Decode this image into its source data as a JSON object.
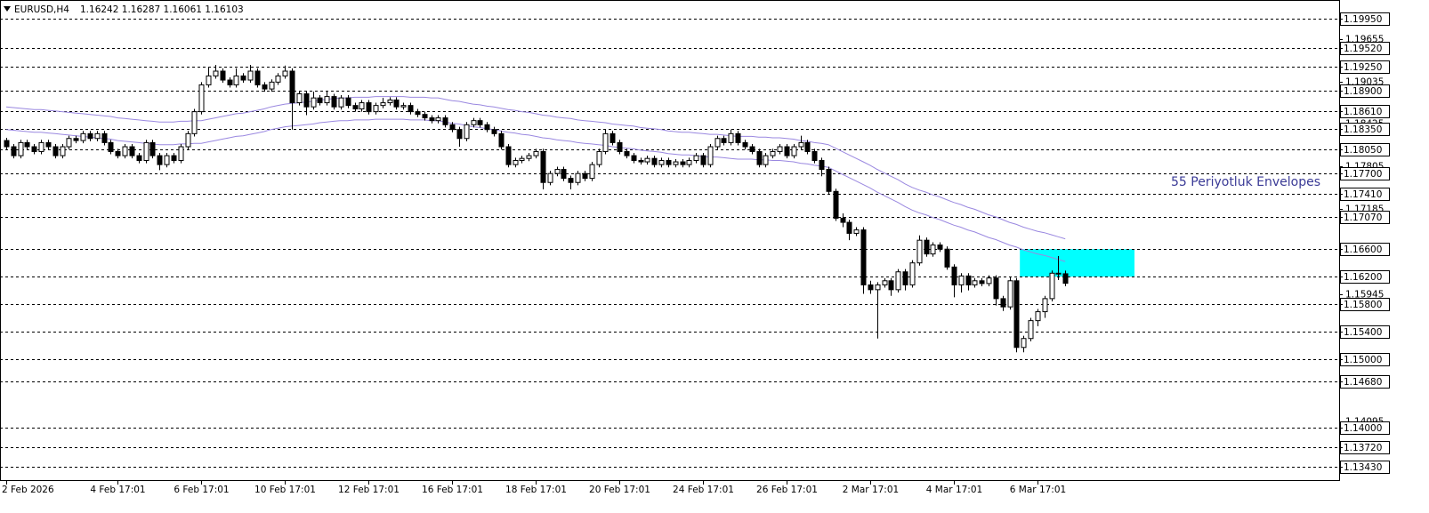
{
  "chart_data": {
    "type": "candlestick",
    "title": "EURUSD,H4",
    "subtitle": "1.16242 1.16287 1.16061 1.16103",
    "annotation": "55 Periyotluk Envelopes",
    "bull_color": "#ffffff",
    "bear_color": "#000000",
    "ylim": [
      1.1324,
      1.2016
    ],
    "yticks": [
      1.19655,
      1.19035,
      1.18425,
      1.17805,
      1.17185,
      1.15945,
      1.14095
    ],
    "levels": [
      {
        "value": 1.1995,
        "label": "1.19950"
      },
      {
        "value": 1.1952,
        "label": "1.19520"
      },
      {
        "value": 1.1925,
        "label": "1.19250"
      },
      {
        "value": 1.189,
        "label": "1.18900"
      },
      {
        "value": 1.1861,
        "label": "1.18610"
      },
      {
        "value": 1.1835,
        "label": "1.18350"
      },
      {
        "value": 1.1805,
        "label": "1.18050"
      },
      {
        "value": 1.177,
        "label": "1.17700"
      },
      {
        "value": 1.1741,
        "label": "1.17410"
      },
      {
        "value": 1.1707,
        "label": "1.17070"
      },
      {
        "value": 1.166,
        "label": "1.16600"
      },
      {
        "value": 1.162,
        "label": "1.16200"
      },
      {
        "value": 1.158,
        "label": "1.15800"
      },
      {
        "value": 1.154,
        "label": "1.15400"
      },
      {
        "value": 1.15,
        "label": "1.15000"
      },
      {
        "value": 1.1468,
        "label": "1.14680"
      },
      {
        "value": 1.14,
        "label": "1.14000"
      },
      {
        "value": 1.1372,
        "label": "1.13720"
      },
      {
        "value": 1.1343,
        "label": "1.13430"
      }
    ],
    "zone": {
      "from": 1.162,
      "to": 1.166,
      "color": "#00ffff"
    },
    "categories": [
      "2 Feb 2026",
      null,
      null,
      null,
      null,
      null,
      null,
      null,
      null,
      null,
      null,
      null,
      null,
      null,
      null,
      null,
      "4 Feb 17:01",
      null,
      null,
      null,
      null,
      null,
      null,
      null,
      null,
      null,
      null,
      null,
      "6 Feb 17:01",
      null,
      null,
      null,
      null,
      null,
      null,
      null,
      null,
      null,
      null,
      null,
      "10 Feb 17:01",
      null,
      null,
      null,
      null,
      null,
      null,
      null,
      null,
      null,
      null,
      null,
      "12 Feb 17:01",
      null,
      null,
      null,
      null,
      null,
      null,
      null,
      null,
      null,
      null,
      null,
      "16 Feb 17:01",
      null,
      null,
      null,
      null,
      null,
      null,
      null,
      null,
      null,
      null,
      null,
      "18 Feb 17:01",
      null,
      null,
      null,
      null,
      null,
      null,
      null,
      null,
      null,
      null,
      null,
      "20 Feb 17:01",
      null,
      null,
      null,
      null,
      null,
      null,
      null,
      null,
      null,
      null,
      null,
      "24 Feb 17:01",
      null,
      null,
      null,
      null,
      null,
      null,
      null,
      null,
      null,
      null,
      null,
      "26 Feb 17:01",
      null,
      null,
      null,
      null,
      null,
      null,
      null,
      null,
      null,
      null,
      null,
      "2 Mar 17:01",
      null,
      null,
      null,
      null,
      null,
      null,
      null,
      null,
      null,
      null,
      null,
      "4 Mar 17:01",
      null,
      null,
      null,
      null,
      null,
      null,
      null,
      null,
      null,
      null,
      null,
      "6 Mar 17:01",
      null,
      null,
      null,
      null
    ],
    "open": [
      1.1818,
      1.1809,
      1.1796,
      1.1815,
      1.1809,
      1.1802,
      1.1815,
      1.1809,
      1.1796,
      1.1809,
      1.1821,
      1.1818,
      1.1828,
      1.1821,
      1.1828,
      1.1815,
      1.1802,
      1.1796,
      1.1809,
      1.1796,
      1.1789,
      1.1815,
      1.1796,
      1.1783,
      1.1796,
      1.1789,
      1.1809,
      1.1828,
      1.186,
      1.1899,
      1.1912,
      1.1919,
      1.1906,
      1.1899,
      1.1912,
      1.1906,
      1.1919,
      1.1899,
      1.1893,
      1.1903,
      1.1912,
      1.1919,
      1.1873,
      1.1886,
      1.1867,
      1.188,
      1.1873,
      1.1882,
      1.1867,
      1.188,
      1.1869,
      1.1864,
      1.1873,
      1.186,
      1.1869,
      1.1873,
      1.1877,
      1.1867,
      1.1869,
      1.186,
      1.1856,
      1.1851,
      1.1847,
      1.1851,
      1.1841,
      1.1834,
      1.1821,
      1.1841,
      1.1847,
      1.1841,
      1.1834,
      1.1828,
      1.1809,
      1.1783,
      1.1789,
      1.1792,
      1.1796,
      1.1802,
      1.1757,
      1.177,
      1.1776,
      1.1763,
      1.1757,
      1.177,
      1.1763,
      1.1783,
      1.1802,
      1.1828,
      1.1815,
      1.1802,
      1.1796,
      1.1789,
      1.1787,
      1.1792,
      1.1783,
      1.1789,
      1.1783,
      1.1787,
      1.1783,
      1.1789,
      1.1796,
      1.1783,
      1.1809,
      1.1821,
      1.1815,
      1.1828,
      1.1815,
      1.1809,
      1.1802,
      1.1783,
      1.1796,
      1.1802,
      1.1809,
      1.1796,
      1.1809,
      1.1815,
      1.1802,
      1.1789,
      1.1776,
      1.1744,
      1.1705,
      1.1699,
      1.1683,
      1.1688,
      1.1608,
      1.1601,
      1.1608,
      1.1614,
      1.1601,
      1.1627,
      1.1608,
      1.164,
      1.1673,
      1.1653,
      1.1666,
      1.166,
      1.1634,
      1.1608,
      1.1621,
      1.1608,
      1.1614,
      1.161,
      1.1618,
      1.1588,
      1.1576,
      1.1614,
      1.1517,
      1.153,
      1.1556,
      1.1569,
      1.1588,
      1.1625,
      1.16242
    ],
    "high": [
      1.1822,
      1.1813,
      1.1819,
      1.1819,
      1.1813,
      1.1819,
      1.1819,
      1.1813,
      1.1813,
      1.1825,
      1.1825,
      1.1832,
      1.1832,
      1.1832,
      1.1832,
      1.1819,
      1.1806,
      1.1813,
      1.1813,
      1.18,
      1.1819,
      1.1819,
      1.18,
      1.18,
      1.18,
      1.1813,
      1.1832,
      1.1864,
      1.1903,
      1.1925,
      1.1928,
      1.1923,
      1.191,
      1.1923,
      1.1916,
      1.1928,
      1.1923,
      1.1903,
      1.1907,
      1.1916,
      1.1927,
      1.1923,
      1.189,
      1.189,
      1.1889,
      1.1884,
      1.189,
      1.1886,
      1.1884,
      1.1884,
      1.1873,
      1.1877,
      1.1877,
      1.1873,
      1.188,
      1.1881,
      1.1881,
      1.1873,
      1.1873,
      1.1864,
      1.186,
      1.1855,
      1.1855,
      1.1855,
      1.1845,
      1.1838,
      1.1845,
      1.1851,
      1.1851,
      1.1845,
      1.1838,
      1.1832,
      1.1813,
      1.1793,
      1.1796,
      1.18,
      1.1806,
      1.1806,
      1.1774,
      1.178,
      1.178,
      1.1767,
      1.1774,
      1.1774,
      1.1787,
      1.1806,
      1.1834,
      1.1832,
      1.1819,
      1.1806,
      1.18,
      1.1793,
      1.1796,
      1.1796,
      1.1793,
      1.1793,
      1.1791,
      1.1791,
      1.1793,
      1.18,
      1.18,
      1.1813,
      1.1825,
      1.1825,
      1.1834,
      1.1832,
      1.1819,
      1.1813,
      1.1806,
      1.18,
      1.1806,
      1.1813,
      1.1813,
      1.1813,
      1.1825,
      1.1819,
      1.1806,
      1.1793,
      1.178,
      1.1748,
      1.1712,
      1.1703,
      1.1692,
      1.1692,
      1.1614,
      1.1612,
      1.1618,
      1.1618,
      1.1631,
      1.1631,
      1.1644,
      1.168,
      1.1677,
      1.167,
      1.167,
      1.1664,
      1.1638,
      1.1625,
      1.1625,
      1.1618,
      1.1618,
      1.1622,
      1.1622,
      1.1592,
      1.162,
      1.1618,
      1.1534,
      1.156,
      1.1573,
      1.1592,
      1.1629,
      1.165,
      1.16287
    ],
    "low": [
      1.1805,
      1.1792,
      1.1792,
      1.1805,
      1.1798,
      1.1798,
      1.1805,
      1.1792,
      1.1792,
      1.1805,
      1.1814,
      1.1814,
      1.1817,
      1.1817,
      1.1811,
      1.1798,
      1.1792,
      1.1792,
      1.1792,
      1.1785,
      1.1785,
      1.1792,
      1.1775,
      1.1779,
      1.1785,
      1.1785,
      1.1805,
      1.1824,
      1.1856,
      1.1895,
      1.1908,
      1.1902,
      1.1895,
      1.1895,
      1.1902,
      1.1902,
      1.1895,
      1.1889,
      1.1889,
      1.1899,
      1.1908,
      1.1834,
      1.1869,
      1.1855,
      1.1863,
      1.1869,
      1.1869,
      1.1863,
      1.1863,
      1.1865,
      1.186,
      1.186,
      1.1856,
      1.1856,
      1.1865,
      1.1869,
      1.1863,
      1.1863,
      1.1856,
      1.1852,
      1.1847,
      1.1843,
      1.1843,
      1.1837,
      1.183,
      1.1809,
      1.1817,
      1.1837,
      1.1837,
      1.183,
      1.1824,
      1.1805,
      1.1779,
      1.1779,
      1.1785,
      1.1788,
      1.1792,
      1.1747,
      1.1753,
      1.1766,
      1.1759,
      1.1747,
      1.1753,
      1.1759,
      1.1759,
      1.1779,
      1.1798,
      1.1811,
      1.1798,
      1.1792,
      1.1785,
      1.1783,
      1.1783,
      1.1779,
      1.1779,
      1.1779,
      1.1779,
      1.1779,
      1.1779,
      1.1785,
      1.1779,
      1.1779,
      1.1805,
      1.1811,
      1.1811,
      1.1811,
      1.1805,
      1.1798,
      1.1779,
      1.1779,
      1.1792,
      1.1798,
      1.1792,
      1.1792,
      1.1805,
      1.1798,
      1.1785,
      1.1766,
      1.174,
      1.1701,
      1.1692,
      1.1673,
      1.1679,
      1.1595,
      1.1595,
      1.153,
      1.1604,
      1.1592,
      1.1597,
      1.16,
      1.1604,
      1.1636,
      1.1649,
      1.1649,
      1.1656,
      1.163,
      1.159,
      1.1597,
      1.16,
      1.1604,
      1.1606,
      1.1606,
      1.1578,
      1.157,
      1.1572,
      1.151,
      1.151,
      1.1526,
      1.1548,
      1.156,
      1.1584,
      1.1615,
      1.16061
    ],
    "close": [
      1.1809,
      1.1796,
      1.1815,
      1.1809,
      1.1802,
      1.1815,
      1.1809,
      1.1796,
      1.1809,
      1.1821,
      1.1818,
      1.1828,
      1.1821,
      1.1828,
      1.1815,
      1.1802,
      1.1796,
      1.1809,
      1.1796,
      1.1789,
      1.1815,
      1.1796,
      1.1783,
      1.1796,
      1.1789,
      1.1809,
      1.1828,
      1.186,
      1.1899,
      1.1912,
      1.1919,
      1.1906,
      1.1899,
      1.1912,
      1.1906,
      1.1919,
      1.1899,
      1.1893,
      1.1903,
      1.1912,
      1.1919,
      1.1873,
      1.1886,
      1.1867,
      1.188,
      1.1873,
      1.1882,
      1.1867,
      1.188,
      1.1869,
      1.1864,
      1.1873,
      1.186,
      1.1869,
      1.1873,
      1.1877,
      1.1867,
      1.1869,
      1.186,
      1.1856,
      1.1851,
      1.1847,
      1.1851,
      1.1841,
      1.1834,
      1.1821,
      1.1841,
      1.1847,
      1.1841,
      1.1834,
      1.1828,
      1.1809,
      1.1783,
      1.1789,
      1.1792,
      1.1796,
      1.1802,
      1.1757,
      1.177,
      1.1776,
      1.1763,
      1.1757,
      1.177,
      1.1763,
      1.1783,
      1.1802,
      1.1828,
      1.1815,
      1.1802,
      1.1796,
      1.1789,
      1.1787,
      1.1792,
      1.1783,
      1.1789,
      1.1783,
      1.1787,
      1.1783,
      1.1789,
      1.1796,
      1.1783,
      1.1809,
      1.1821,
      1.1815,
      1.1828,
      1.1815,
      1.1809,
      1.1802,
      1.1783,
      1.1796,
      1.1802,
      1.1809,
      1.1796,
      1.1809,
      1.1815,
      1.1802,
      1.1789,
      1.1776,
      1.1744,
      1.1705,
      1.1699,
      1.1683,
      1.1688,
      1.1608,
      1.1601,
      1.1608,
      1.1614,
      1.1601,
      1.1627,
      1.1608,
      1.164,
      1.1673,
      1.1653,
      1.1666,
      1.166,
      1.1634,
      1.1608,
      1.1621,
      1.1608,
      1.1614,
      1.161,
      1.1618,
      1.1588,
      1.1576,
      1.1614,
      1.1517,
      1.153,
      1.1556,
      1.1569,
      1.1588,
      1.1625,
      1.16242,
      1.16103
    ],
    "overlays": [
      {
        "color": "#9a88e0",
        "values": [
          1.1867,
          1.1866,
          1.1865,
          1.1864,
          1.1863,
          1.1863,
          1.1862,
          1.1861,
          1.186,
          1.1859,
          1.1858,
          1.1857,
          1.1856,
          1.1855,
          1.1854,
          1.1853,
          1.1851,
          1.185,
          1.1849,
          1.1848,
          1.1847,
          1.1846,
          1.1845,
          1.1845,
          1.1845,
          1.1846,
          1.1846,
          1.1847,
          1.1847,
          1.1849,
          1.1851,
          1.1853,
          1.1855,
          1.1857,
          1.1858,
          1.186,
          1.1862,
          1.1864,
          1.1867,
          1.1869,
          1.1871,
          1.1872,
          1.1873,
          1.1874,
          1.1875,
          1.1877,
          1.1878,
          1.1879,
          1.188,
          1.188,
          1.1881,
          1.1881,
          1.1881,
          1.1882,
          1.1882,
          1.1882,
          1.1882,
          1.1882,
          1.1881,
          1.1881,
          1.1881,
          1.188,
          1.188,
          1.1878,
          1.1876,
          1.1875,
          1.1873,
          1.1871,
          1.187,
          1.1868,
          1.1867,
          1.1865,
          1.1863,
          1.1862,
          1.186,
          1.1859,
          1.1857,
          1.1855,
          1.1854,
          1.1852,
          1.1851,
          1.185,
          1.1848,
          1.1847,
          1.1846,
          1.1845,
          1.1844,
          1.1842,
          1.1841,
          1.184,
          1.1839,
          1.1837,
          1.1836,
          1.1835,
          1.1834,
          1.1832,
          1.1831,
          1.183,
          1.183,
          1.1829,
          1.1828,
          1.1827,
          1.1827,
          1.1826,
          1.1825,
          1.1824,
          1.1824,
          1.1824,
          1.1823,
          1.1823,
          1.1822,
          1.1822,
          1.1821,
          1.182,
          1.1818,
          1.1817,
          1.1815,
          1.1814,
          1.1812,
          1.1807,
          1.1802,
          1.1797,
          1.1792,
          1.1787,
          1.1782,
          1.1776,
          1.1771,
          1.1766,
          1.1761,
          1.1755,
          1.175,
          1.1746,
          1.1743,
          1.1739,
          1.1736,
          1.1732,
          1.1728,
          1.1725,
          1.1721,
          1.1718,
          1.1714,
          1.171,
          1.1707,
          1.1703,
          1.1699,
          1.1696,
          1.1692,
          1.1689,
          1.1686,
          1.1684,
          1.1681,
          1.1678,
          1.1675
        ]
      },
      {
        "color": "#9a88e0",
        "values": [
          1.1834,
          1.1833,
          1.1832,
          1.1831,
          1.183,
          1.183,
          1.1829,
          1.1828,
          1.1827,
          1.1826,
          1.1825,
          1.1824,
          1.1823,
          1.1822,
          1.1821,
          1.182,
          1.1818,
          1.1817,
          1.1816,
          1.1815,
          1.1814,
          1.1813,
          1.1812,
          1.1812,
          1.1812,
          1.1813,
          1.1813,
          1.1814,
          1.1814,
          1.1816,
          1.1818,
          1.182,
          1.1822,
          1.1824,
          1.1825,
          1.1827,
          1.1829,
          1.1831,
          1.1834,
          1.1836,
          1.1838,
          1.1839,
          1.184,
          1.1841,
          1.1842,
          1.1844,
          1.1845,
          1.1846,
          1.1847,
          1.1847,
          1.1848,
          1.1848,
          1.1848,
          1.1849,
          1.1849,
          1.1849,
          1.1849,
          1.1849,
          1.1848,
          1.1848,
          1.1848,
          1.1847,
          1.1847,
          1.1845,
          1.1843,
          1.1842,
          1.184,
          1.1838,
          1.1837,
          1.1835,
          1.1834,
          1.1832,
          1.183,
          1.1829,
          1.1827,
          1.1826,
          1.1824,
          1.1822,
          1.1821,
          1.1819,
          1.1818,
          1.1817,
          1.1815,
          1.1814,
          1.1813,
          1.1812,
          1.1811,
          1.1809,
          1.1808,
          1.1807,
          1.1806,
          1.1804,
          1.1803,
          1.1802,
          1.1801,
          1.1799,
          1.1798,
          1.1797,
          1.1797,
          1.1796,
          1.1795,
          1.1794,
          1.1794,
          1.1793,
          1.1792,
          1.1791,
          1.1791,
          1.1791,
          1.179,
          1.179,
          1.1789,
          1.1789,
          1.1788,
          1.1787,
          1.1785,
          1.1784,
          1.1782,
          1.1781,
          1.1779,
          1.1774,
          1.1769,
          1.1764,
          1.1759,
          1.1754,
          1.1749,
          1.1743,
          1.1738,
          1.1733,
          1.1728,
          1.1722,
          1.1717,
          1.1713,
          1.171,
          1.1706,
          1.1703,
          1.1699,
          1.1695,
          1.1692,
          1.1688,
          1.1685,
          1.1681,
          1.1677,
          1.1674,
          1.167,
          1.1666,
          1.1663,
          1.1659,
          1.1656,
          1.1653,
          1.1651,
          1.1648,
          1.1645,
          1.1642
        ]
      }
    ]
  }
}
